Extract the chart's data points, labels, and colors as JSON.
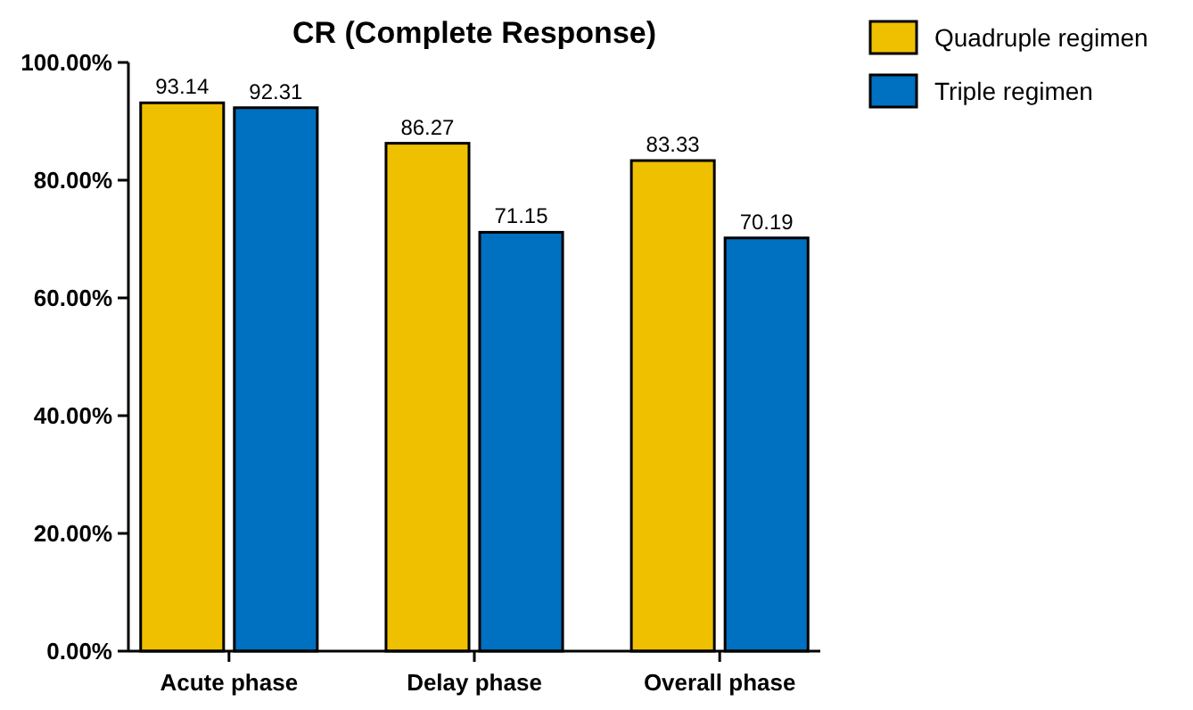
{
  "chart_data": {
    "type": "bar",
    "title": "CR (Complete Response)",
    "categories": [
      "Acute phase",
      "Delay phase",
      "Overall phase"
    ],
    "series": [
      {
        "name": "Quadruple regimen",
        "color": "#eec000",
        "values": [
          93.14,
          86.27,
          83.33
        ]
      },
      {
        "name": "Triple regimen",
        "color": "#0070c0",
        "values": [
          92.31,
          71.15,
          70.19
        ]
      }
    ],
    "ylim": [
      0,
      100
    ],
    "yticks": [
      {
        "value": 0,
        "label": "0.00%"
      },
      {
        "value": 20,
        "label": "20.00%"
      },
      {
        "value": 40,
        "label": "40.00%"
      },
      {
        "value": 60,
        "label": "60.00%"
      },
      {
        "value": 80,
        "label": "80.00%"
      },
      {
        "value": 100,
        "label": "100.00%"
      }
    ],
    "data_labels": true,
    "legend": "top right",
    "grid": false
  }
}
